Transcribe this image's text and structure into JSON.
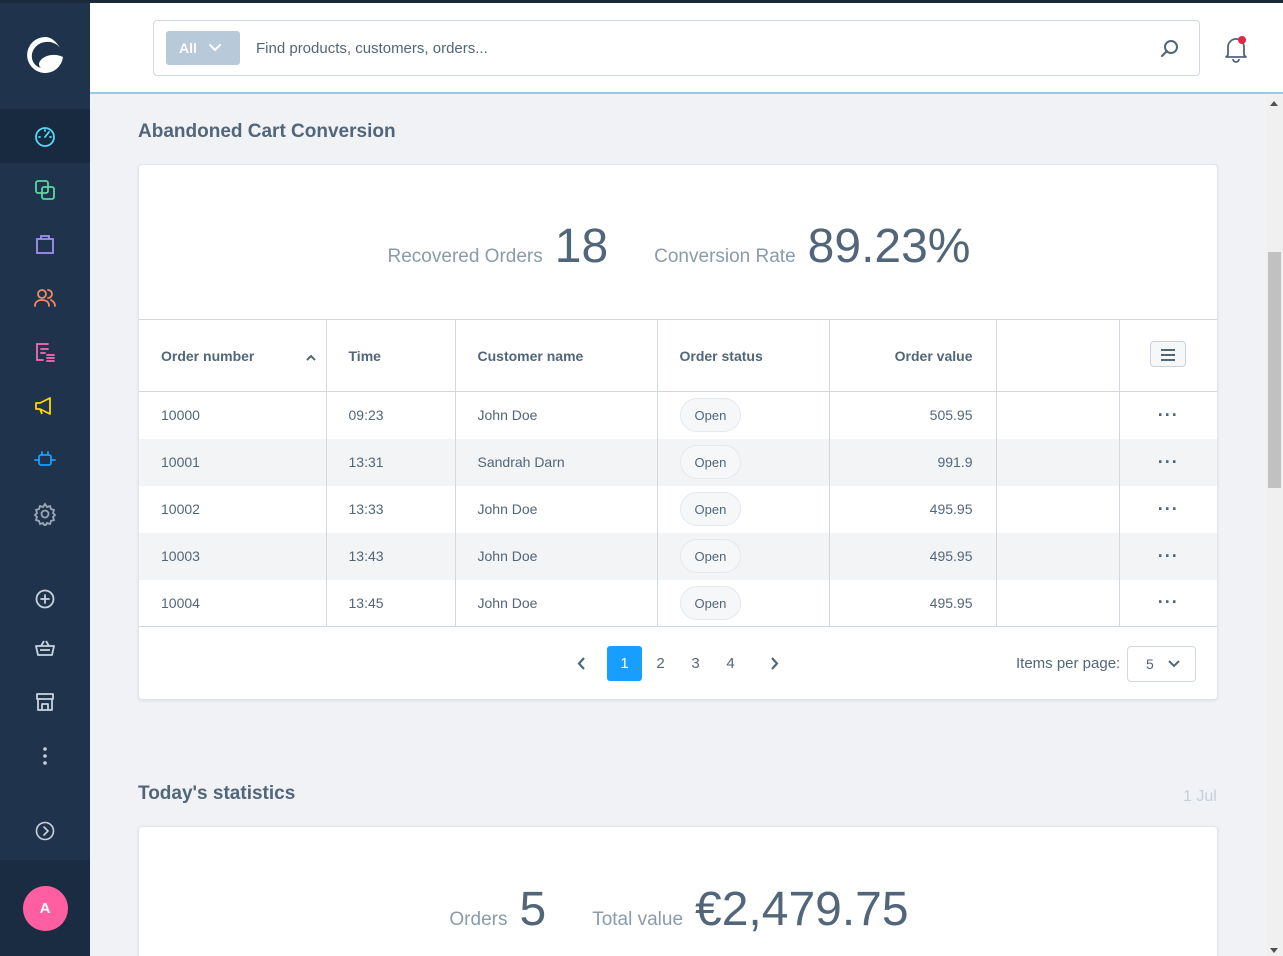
{
  "header": {
    "search_scope": "All",
    "search_placeholder": "Find products, customers, orders..."
  },
  "sidebar": {
    "items": [
      {
        "name": "dashboard-icon",
        "color": "#57d9f6"
      },
      {
        "name": "catalogues-icon",
        "color": "#57d9a3"
      },
      {
        "name": "orders-icon",
        "color": "#a092f0"
      },
      {
        "name": "customers-icon",
        "color": "#f88962"
      },
      {
        "name": "content-icon",
        "color": "#ff68b4"
      },
      {
        "name": "marketing-icon",
        "color": "#ffd700"
      },
      {
        "name": "extensions-icon",
        "color": "#189eff"
      },
      {
        "name": "settings-icon",
        "color": "#9aa8b5"
      }
    ],
    "user_initial": "A"
  },
  "abandoned_cart": {
    "title": "Abandoned Cart Conversion",
    "recovered_label": "Recovered Orders",
    "recovered_value": "18",
    "conversion_label": "Conversion Rate",
    "conversion_value": "89.23%",
    "columns": [
      "Order number",
      "Time",
      "Customer name",
      "Order status",
      "Order value"
    ],
    "rows": [
      {
        "order": "10000",
        "time": "09:23",
        "customer": "John Doe",
        "status": "Open",
        "value": "505.95"
      },
      {
        "order": "10001",
        "time": "13:31",
        "customer": "Sandrah Darn",
        "status": "Open",
        "value": "991.9"
      },
      {
        "order": "10002",
        "time": "13:33",
        "customer": "John Doe",
        "status": "Open",
        "value": "495.95"
      },
      {
        "order": "10003",
        "time": "13:43",
        "customer": "John Doe",
        "status": "Open",
        "value": "495.95"
      },
      {
        "order": "10004",
        "time": "13:45",
        "customer": "John Doe",
        "status": "Open",
        "value": "495.95"
      }
    ],
    "pages": [
      "1",
      "2",
      "3",
      "4"
    ],
    "current_page": "1",
    "items_per_page_label": "Items per page:",
    "items_per_page_value": "5"
  },
  "today": {
    "title": "Today's statistics",
    "date": "1 Jul",
    "orders_label": "Orders",
    "orders_value": "5",
    "total_label": "Total value",
    "total_value": "€2,479.75"
  }
}
